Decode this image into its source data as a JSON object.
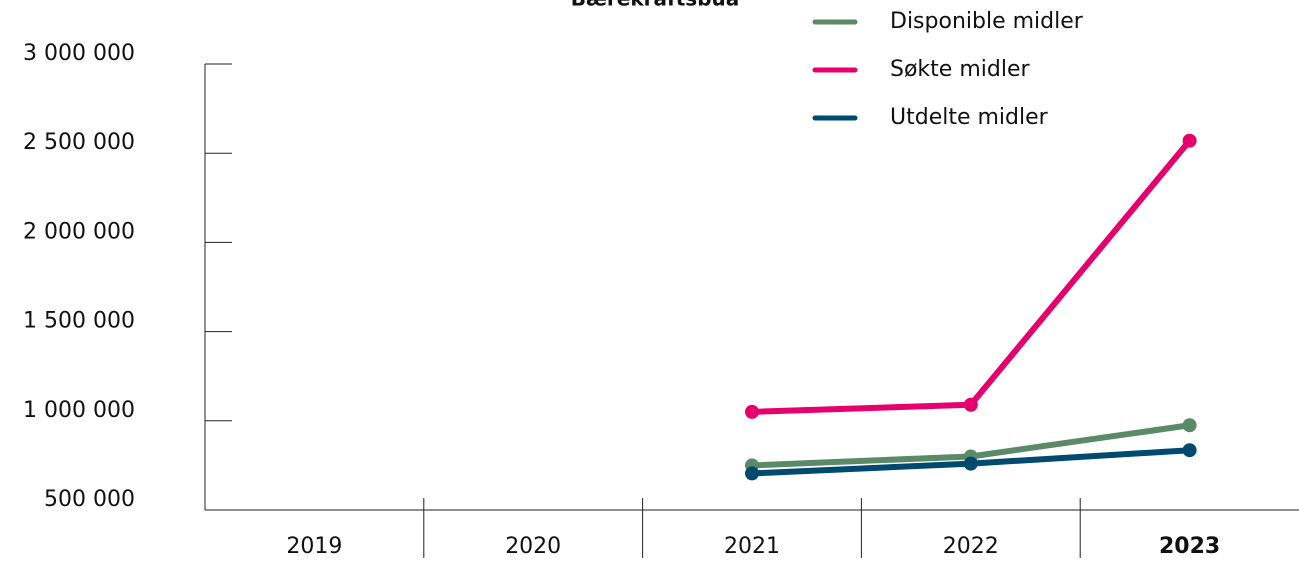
{
  "chart_data": {
    "type": "line",
    "title": "Bærekraftsbua",
    "categories": [
      "2019",
      "2020",
      "2021",
      "2022",
      "2023"
    ],
    "series": [
      {
        "name": "Disponible midler",
        "color": "#5b8a68",
        "values": [
          null,
          null,
          750000,
          800000,
          975000
        ]
      },
      {
        "name": "Søkte midler",
        "color": "#e5006e",
        "values": [
          null,
          null,
          1050000,
          1090000,
          2570000
        ]
      },
      {
        "name": "Utdelte midler",
        "color": "#00496f",
        "values": [
          null,
          null,
          705000,
          760000,
          835000
        ]
      }
    ],
    "ylim": [
      500000,
      3000000
    ],
    "yticks": [
      {
        "value": 500000,
        "label": "500 000"
      },
      {
        "value": 1000000,
        "label": "1 000 000"
      },
      {
        "value": 1500000,
        "label": "1 500 000"
      },
      {
        "value": 2000000,
        "label": "2 000 000"
      },
      {
        "value": 2500000,
        "label": "2 500 000"
      },
      {
        "value": 3000000,
        "label": "3 000 000"
      }
    ],
    "legend": "top-right"
  }
}
